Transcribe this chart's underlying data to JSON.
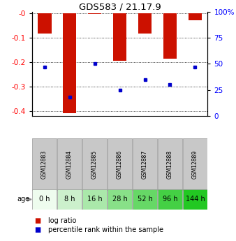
{
  "title": "GDS583 / 21.17.9",
  "samples": [
    "GSM12883",
    "GSM12884",
    "GSM12885",
    "GSM12886",
    "GSM12887",
    "GSM12888",
    "GSM12889"
  ],
  "ages": [
    "0 h",
    "8 h",
    "16 h",
    "28 h",
    "52 h",
    "96 h",
    "144 h"
  ],
  "log_ratios": [
    -0.082,
    -0.41,
    -0.002,
    -0.195,
    -0.082,
    -0.185,
    -0.028
  ],
  "percentile_ranks": [
    47,
    18,
    50,
    25,
    35,
    30,
    47
  ],
  "ylim": [
    -0.42,
    0.005
  ],
  "yticks": [
    0,
    -0.1,
    -0.2,
    -0.3,
    -0.4
  ],
  "ytick_labels": [
    "-0",
    "-0.1",
    "-0.2",
    "-0.3",
    "-0.4"
  ],
  "right_yticks": [
    0,
    25,
    50,
    75,
    100
  ],
  "right_ytick_labels": [
    "0",
    "25",
    "50",
    "75",
    "100%"
  ],
  "bar_color": "#cc1100",
  "dot_color": "#0000cc",
  "age_colors": [
    "#eefcee",
    "#ccf0cc",
    "#aae8aa",
    "#88e088",
    "#66d866",
    "#44d044",
    "#22c822"
  ],
  "sample_bg_color": "#c8c8c8",
  "legend_bar_label": "log ratio",
  "legend_dot_label": "percentile rank within the sample",
  "bar_width": 0.55
}
